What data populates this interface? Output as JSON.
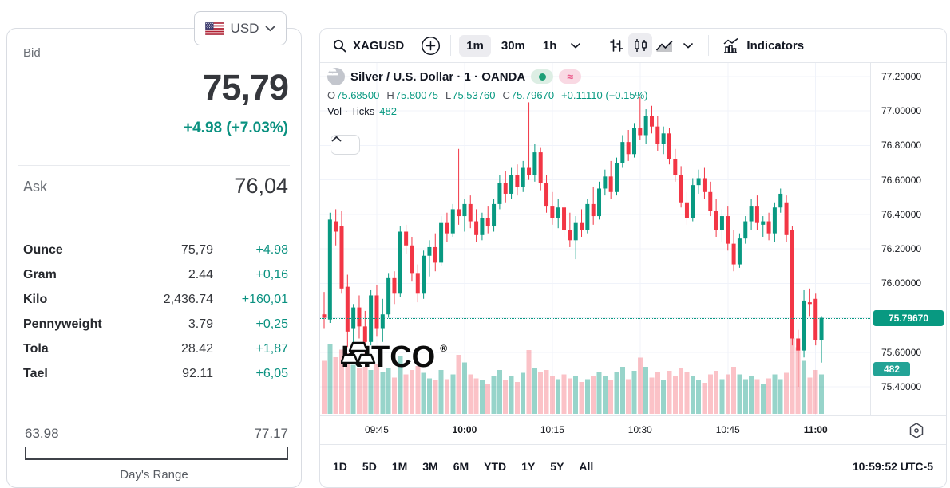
{
  "currency_selector": {
    "label": "USD",
    "flag": "us-flag"
  },
  "quote_panel": {
    "bid_label": "Bid",
    "bid_price": "75,79",
    "bid_change": "+4.98 (+7.03%)",
    "ask_label": "Ask",
    "ask_price": "76,04",
    "conversions": [
      {
        "label": "Ounce",
        "value": "75,79",
        "change": "+4.98"
      },
      {
        "label": "Gram",
        "value": "2.44",
        "change": "+0,16"
      },
      {
        "label": "Kilo",
        "value": "2,436.74",
        "change": "+160,01"
      },
      {
        "label": "Pennyweight",
        "value": "3.79",
        "change": "+0,25"
      },
      {
        "label": "Tola",
        "value": "28.42",
        "change": "+1,87"
      },
      {
        "label": "Tael",
        "value": "92.11",
        "change": "+6,05"
      }
    ],
    "range": {
      "low": "63.98",
      "high": "77.17",
      "label": "Day's Range"
    }
  },
  "toolbar": {
    "symbol": "XAGUSD",
    "intervals": [
      {
        "label": "1m",
        "active": true
      },
      {
        "label": "30m",
        "active": false
      },
      {
        "label": "1h",
        "active": false
      }
    ],
    "chart_types": [
      "bars",
      "candles",
      "area"
    ],
    "active_chart_type": "candles",
    "indicators_label": "Indicators"
  },
  "legend": {
    "title": "Silver / U.S. Dollar · 1 · OANDA",
    "status_pills": [
      "market-open-dot",
      "approx-symbol"
    ],
    "ohlc": [
      {
        "k": "O",
        "v": "75.68500"
      },
      {
        "k": "H",
        "v": "75.80075"
      },
      {
        "k": "L",
        "v": "75.53760"
      },
      {
        "k": "C",
        "v": "75.79670"
      }
    ],
    "change": "+0.11110 (+0.15%)",
    "vol_label": "Vol · Ticks",
    "vol_value": "482"
  },
  "watermark": {
    "text": "KITCO",
    "reg": "®"
  },
  "footer": {
    "ranges": [
      "1D",
      "5D",
      "1M",
      "3M",
      "6M",
      "YTD",
      "1Y",
      "5Y",
      "All"
    ],
    "clock": "10:59:52 UTC-5"
  },
  "chart_data": {
    "type": "candlestick",
    "symbol": "XAGUSD",
    "description": "Silver / U.S. Dollar",
    "interval": "1 minute",
    "exchange": "OANDA",
    "current_candle": {
      "open": 75.685,
      "high": 75.80075,
      "low": 75.5376,
      "close": 75.7967,
      "change": 0.1111,
      "change_pct": 0.15
    },
    "ticks": 482,
    "time_start": "09:36",
    "time_end": "11:01",
    "interval_minutes": 1,
    "current_price": 75.7967,
    "price_label": "75.79670",
    "volume_label": "482",
    "price_axis_min": 75.32,
    "price_axis_max": 77.28,
    "y_ticks": [
      {
        "price": 77.2,
        "label": "77.20000"
      },
      {
        "price": 77.0,
        "label": "77.00000"
      },
      {
        "price": 76.8,
        "label": "76.80000"
      },
      {
        "price": 76.6,
        "label": "76.60000"
      },
      {
        "price": 76.4,
        "label": "76.40000"
      },
      {
        "price": 76.2,
        "label": "76.20000"
      },
      {
        "price": 76.0,
        "label": "76.00000"
      },
      {
        "price": 75.6,
        "label": "75.60000"
      },
      {
        "price": 75.4,
        "label": "75.40000"
      }
    ],
    "grid": {
      "h_min": 75.4,
      "h_max": 77.2,
      "h_step": 0.2
    },
    "x_ticks": [
      {
        "label": "09:45",
        "index": 9,
        "bold": false
      },
      {
        "label": "10:00",
        "index": 24,
        "bold": true
      },
      {
        "label": "10:15",
        "index": 39,
        "bold": false
      },
      {
        "label": "10:30",
        "index": 54,
        "bold": false
      },
      {
        "label": "10:45",
        "index": 69,
        "bold": false
      },
      {
        "label": "11:00",
        "index": 84,
        "bold": true
      }
    ],
    "colors": {
      "up": "#089981",
      "down": "#f23645",
      "vol_up": "rgba(8,153,129,0.42)",
      "vol_down": "rgba(242,54,69,0.30)",
      "grid": "#f0f3fa",
      "accent": "#089981"
    },
    "candles": [
      [
        75.82,
        75.95,
        75.74,
        75.8,
        70
      ],
      [
        75.79,
        76.41,
        75.77,
        76.37,
        92
      ],
      [
        76.36,
        76.43,
        76.22,
        76.3,
        75
      ],
      [
        76.33,
        76.42,
        75.94,
        75.97,
        85
      ],
      [
        75.98,
        76.05,
        75.63,
        75.72,
        80
      ],
      [
        75.74,
        75.88,
        75.55,
        75.86,
        65
      ],
      [
        75.86,
        75.93,
        75.68,
        75.75,
        60
      ],
      [
        75.75,
        75.84,
        75.58,
        75.66,
        62
      ],
      [
        75.66,
        75.96,
        75.64,
        75.93,
        58
      ],
      [
        75.93,
        75.99,
        75.69,
        75.74,
        66
      ],
      [
        75.74,
        75.91,
        75.66,
        75.82,
        55
      ],
      [
        75.82,
        76.06,
        75.8,
        76.03,
        60
      ],
      [
        76.03,
        76.07,
        75.88,
        75.94,
        48
      ],
      [
        75.94,
        76.33,
        75.92,
        76.3,
        76
      ],
      [
        76.3,
        76.34,
        76.17,
        76.22,
        52
      ],
      [
        76.22,
        76.27,
        76.01,
        76.06,
        58
      ],
      [
        76.06,
        76.11,
        75.89,
        75.94,
        63
      ],
      [
        75.94,
        76.19,
        75.91,
        76.16,
        54
      ],
      [
        76.16,
        76.25,
        76.04,
        76.21,
        47
      ],
      [
        76.21,
        76.29,
        76.07,
        76.12,
        44
      ],
      [
        76.12,
        76.39,
        76.1,
        76.35,
        58
      ],
      [
        76.35,
        76.41,
        76.24,
        76.29,
        46
      ],
      [
        76.29,
        76.46,
        76.27,
        76.43,
        52
      ],
      [
        76.43,
        76.78,
        76.34,
        76.39,
        78
      ],
      [
        76.39,
        76.49,
        76.3,
        76.46,
        68
      ],
      [
        76.46,
        76.51,
        76.32,
        76.36,
        52
      ],
      [
        76.36,
        76.43,
        76.24,
        76.28,
        47
      ],
      [
        76.28,
        76.41,
        76.25,
        76.38,
        44
      ],
      [
        76.38,
        76.45,
        76.29,
        76.33,
        40
      ],
      [
        76.33,
        76.49,
        76.3,
        76.46,
        50
      ],
      [
        76.46,
        76.63,
        76.43,
        76.58,
        58
      ],
      [
        76.58,
        76.65,
        76.47,
        76.52,
        45
      ],
      [
        76.52,
        76.67,
        76.49,
        76.63,
        50
      ],
      [
        76.63,
        76.69,
        76.51,
        76.56,
        42
      ],
      [
        76.56,
        76.71,
        76.53,
        76.67,
        54
      ],
      [
        76.67,
        77.05,
        76.6,
        76.63,
        84
      ],
      [
        76.63,
        76.81,
        76.59,
        76.76,
        60
      ],
      [
        76.76,
        76.79,
        76.54,
        76.58,
        55
      ],
      [
        76.58,
        76.63,
        76.41,
        76.45,
        58
      ],
      [
        76.45,
        76.53,
        76.34,
        76.38,
        50
      ],
      [
        76.38,
        76.49,
        76.32,
        76.44,
        46
      ],
      [
        76.44,
        76.47,
        76.27,
        76.31,
        52
      ],
      [
        76.31,
        76.41,
        76.21,
        76.25,
        47
      ],
      [
        76.25,
        76.39,
        76.14,
        76.35,
        50
      ],
      [
        76.35,
        76.43,
        76.27,
        76.31,
        42
      ],
      [
        76.31,
        76.49,
        76.29,
        76.46,
        46
      ],
      [
        76.46,
        76.56,
        76.34,
        76.39,
        50
      ],
      [
        76.39,
        76.59,
        76.37,
        76.55,
        56
      ],
      [
        76.55,
        76.66,
        76.51,
        76.62,
        50
      ],
      [
        76.62,
        76.71,
        76.49,
        76.53,
        45
      ],
      [
        76.53,
        76.73,
        76.51,
        76.7,
        56
      ],
      [
        76.7,
        76.86,
        76.67,
        76.82,
        62
      ],
      [
        76.82,
        76.89,
        76.71,
        76.75,
        46
      ],
      [
        76.75,
        76.93,
        76.73,
        76.9,
        57
      ],
      [
        76.9,
        77.08,
        76.83,
        76.86,
        74
      ],
      [
        76.86,
        77.01,
        76.81,
        76.97,
        62
      ],
      [
        76.97,
        77.03,
        76.87,
        76.91,
        48
      ],
      [
        76.91,
        76.97,
        76.77,
        76.81,
        56
      ],
      [
        76.81,
        76.91,
        76.75,
        76.87,
        44
      ],
      [
        76.87,
        76.9,
        76.69,
        76.72,
        57
      ],
      [
        76.72,
        76.78,
        76.59,
        76.63,
        50
      ],
      [
        76.63,
        76.68,
        76.44,
        76.47,
        61
      ],
      [
        76.47,
        76.53,
        76.34,
        76.38,
        56
      ],
      [
        76.38,
        76.61,
        76.36,
        76.57,
        50
      ],
      [
        76.57,
        76.66,
        76.52,
        76.61,
        44
      ],
      [
        76.61,
        76.67,
        76.49,
        76.53,
        41
      ],
      [
        76.53,
        76.59,
        76.39,
        76.42,
        52
      ],
      [
        76.42,
        76.49,
        76.27,
        76.31,
        57
      ],
      [
        76.31,
        76.43,
        76.24,
        76.39,
        46
      ],
      [
        76.39,
        76.45,
        76.19,
        76.23,
        52
      ],
      [
        76.23,
        76.31,
        76.07,
        76.11,
        62
      ],
      [
        76.11,
        76.29,
        76.09,
        76.26,
        52
      ],
      [
        76.26,
        76.39,
        76.23,
        76.36,
        46
      ],
      [
        76.36,
        76.49,
        76.31,
        76.45,
        50
      ],
      [
        76.45,
        76.51,
        76.31,
        76.35,
        46
      ],
      [
        76.34,
        76.39,
        76.27,
        76.36,
        40
      ],
      [
        76.36,
        76.41,
        76.25,
        76.29,
        47
      ],
      [
        76.29,
        76.47,
        76.24,
        76.44,
        52
      ],
      [
        76.44,
        76.55,
        76.41,
        76.52,
        46
      ],
      [
        76.47,
        76.51,
        76.24,
        76.28,
        54
      ],
      [
        76.31,
        76.33,
        75.64,
        75.68,
        100
      ],
      [
        75.68,
        75.73,
        75.4,
        75.61,
        88
      ],
      [
        75.61,
        75.96,
        75.57,
        75.9,
        70
      ],
      [
        75.89,
        75.97,
        75.81,
        75.88,
        48
      ],
      [
        75.91,
        75.94,
        75.64,
        75.67,
        58
      ],
      [
        75.67,
        75.81,
        75.54,
        75.8,
        52
      ]
    ]
  }
}
